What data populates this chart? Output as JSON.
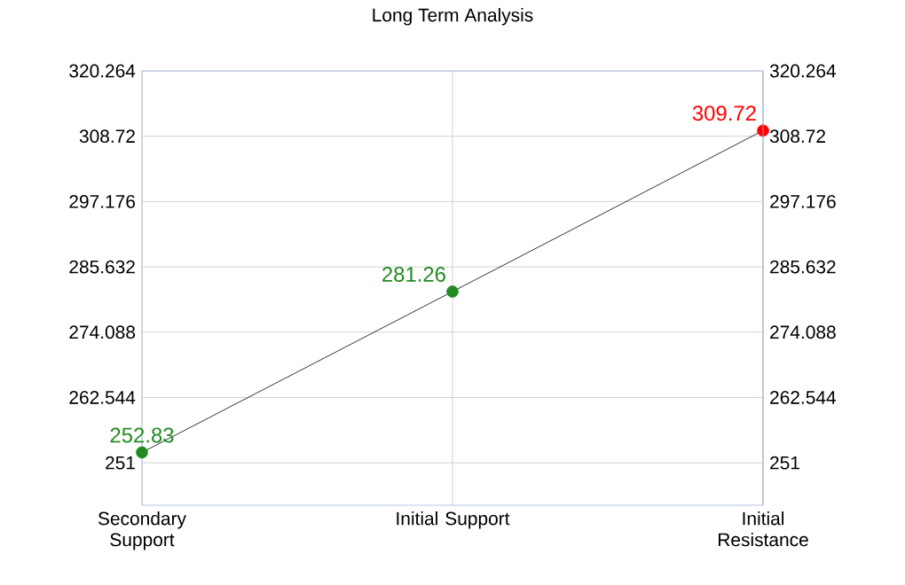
{
  "chart_data": {
    "type": "line",
    "title": "Long Term Analysis",
    "categories": [
      "Secondary Support",
      "Initial Support",
      "Initial Resistance"
    ],
    "series": [
      {
        "color": "#000000",
        "colors": [
          "#228b22",
          "#228b22",
          "#ff0000"
        ],
        "values": [
          252.83,
          281.26,
          309.72
        ]
      }
    ],
    "ylim": [
      243.5,
      320.264
    ],
    "yticks": [
      251,
      262.544,
      274.088,
      285.632,
      297.176,
      308.72,
      320.264
    ],
    "y2lim": [
      243.5,
      320.264
    ],
    "y2ticks": [
      251,
      262.544,
      274.088,
      285.632,
      297.176,
      308.72,
      320.264
    ],
    "grid": true,
    "marker": "circle",
    "line_style": "solid",
    "data_labels": true
  }
}
